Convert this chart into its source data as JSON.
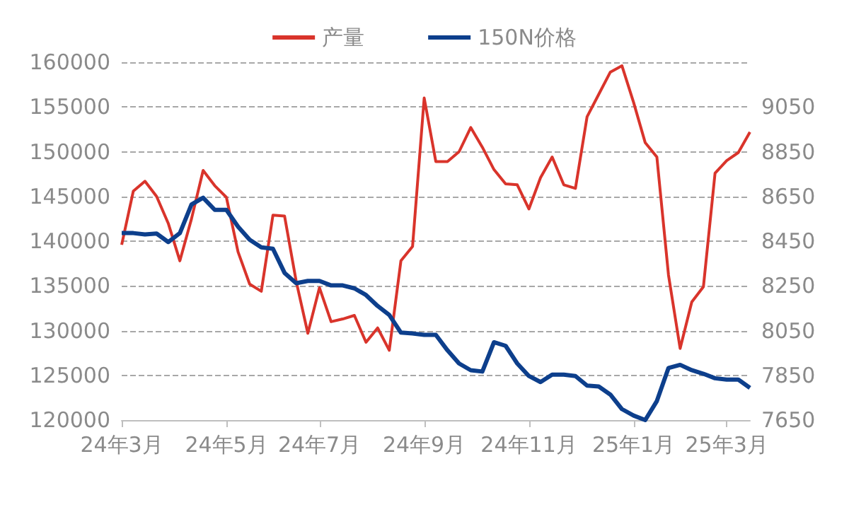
{
  "chart_data": {
    "type": "line",
    "categories": [
      "24年3月",
      null,
      null,
      null,
      null,
      null,
      null,
      null,
      null,
      "24年5月",
      null,
      null,
      null,
      null,
      null,
      null,
      null,
      "24年7月",
      null,
      null,
      null,
      null,
      null,
      null,
      null,
      null,
      "24年9月",
      null,
      null,
      null,
      null,
      null,
      null,
      null,
      null,
      "24年11月",
      null,
      null,
      null,
      null,
      null,
      null,
      null,
      null,
      "25年1月",
      null,
      null,
      null,
      null,
      null,
      null,
      null,
      "25年3月",
      null,
      null
    ],
    "series": [
      {
        "name": "产量",
        "color": "#d9342b",
        "values": [
          139600,
          145600,
          146700,
          145000,
          142000,
          137800,
          142500,
          147900,
          146200,
          144900,
          138800,
          135200,
          134400,
          142900,
          142800,
          135500,
          129700,
          134800,
          131000,
          131300,
          131700,
          128700,
          130300,
          127800,
          137800,
          139400,
          156000,
          148900,
          148900,
          150000,
          152700,
          150500,
          148000,
          146400,
          146300,
          143600,
          147100,
          149400,
          146300,
          145900,
          153900,
          156400,
          158900,
          159600,
          155500,
          151000,
          149400,
          136200,
          128000,
          133200,
          134900,
          147600,
          149000,
          149900,
          152200
        ]
      },
      {
        "name": "150N价格",
        "color": "#0d3f8c",
        "axis": "y2",
        "values": [
          8486,
          8486,
          8480,
          8484,
          8446,
          8486,
          8614,
          8644,
          8590,
          8590,
          8515,
          8456,
          8422,
          8416,
          8308,
          8262,
          8272,
          8272,
          8252,
          8252,
          8239,
          8209,
          8160,
          8120,
          8041,
          8037,
          8031,
          8031,
          7962,
          7903,
          7873,
          7867,
          7998,
          7982,
          7903,
          7847,
          7820,
          7853,
          7853,
          7847,
          7804,
          7800,
          7764,
          7699,
          7670,
          7650,
          7735,
          7883,
          7897,
          7873,
          7857,
          7837,
          7831,
          7831,
          7794
        ]
      }
    ],
    "ylim": [
      120000,
      160000
    ],
    "yticks": [
      120000,
      125000,
      130000,
      135000,
      140000,
      145000,
      150000,
      155000,
      160000
    ],
    "y2lim": [
      7650,
      9250
    ],
    "y2ticks": [
      7650,
      7850,
      8050,
      8250,
      8450,
      8650,
      8850,
      9050
    ],
    "grid": "y",
    "legend": "top",
    "marker": "none",
    "line_style": "solid"
  }
}
